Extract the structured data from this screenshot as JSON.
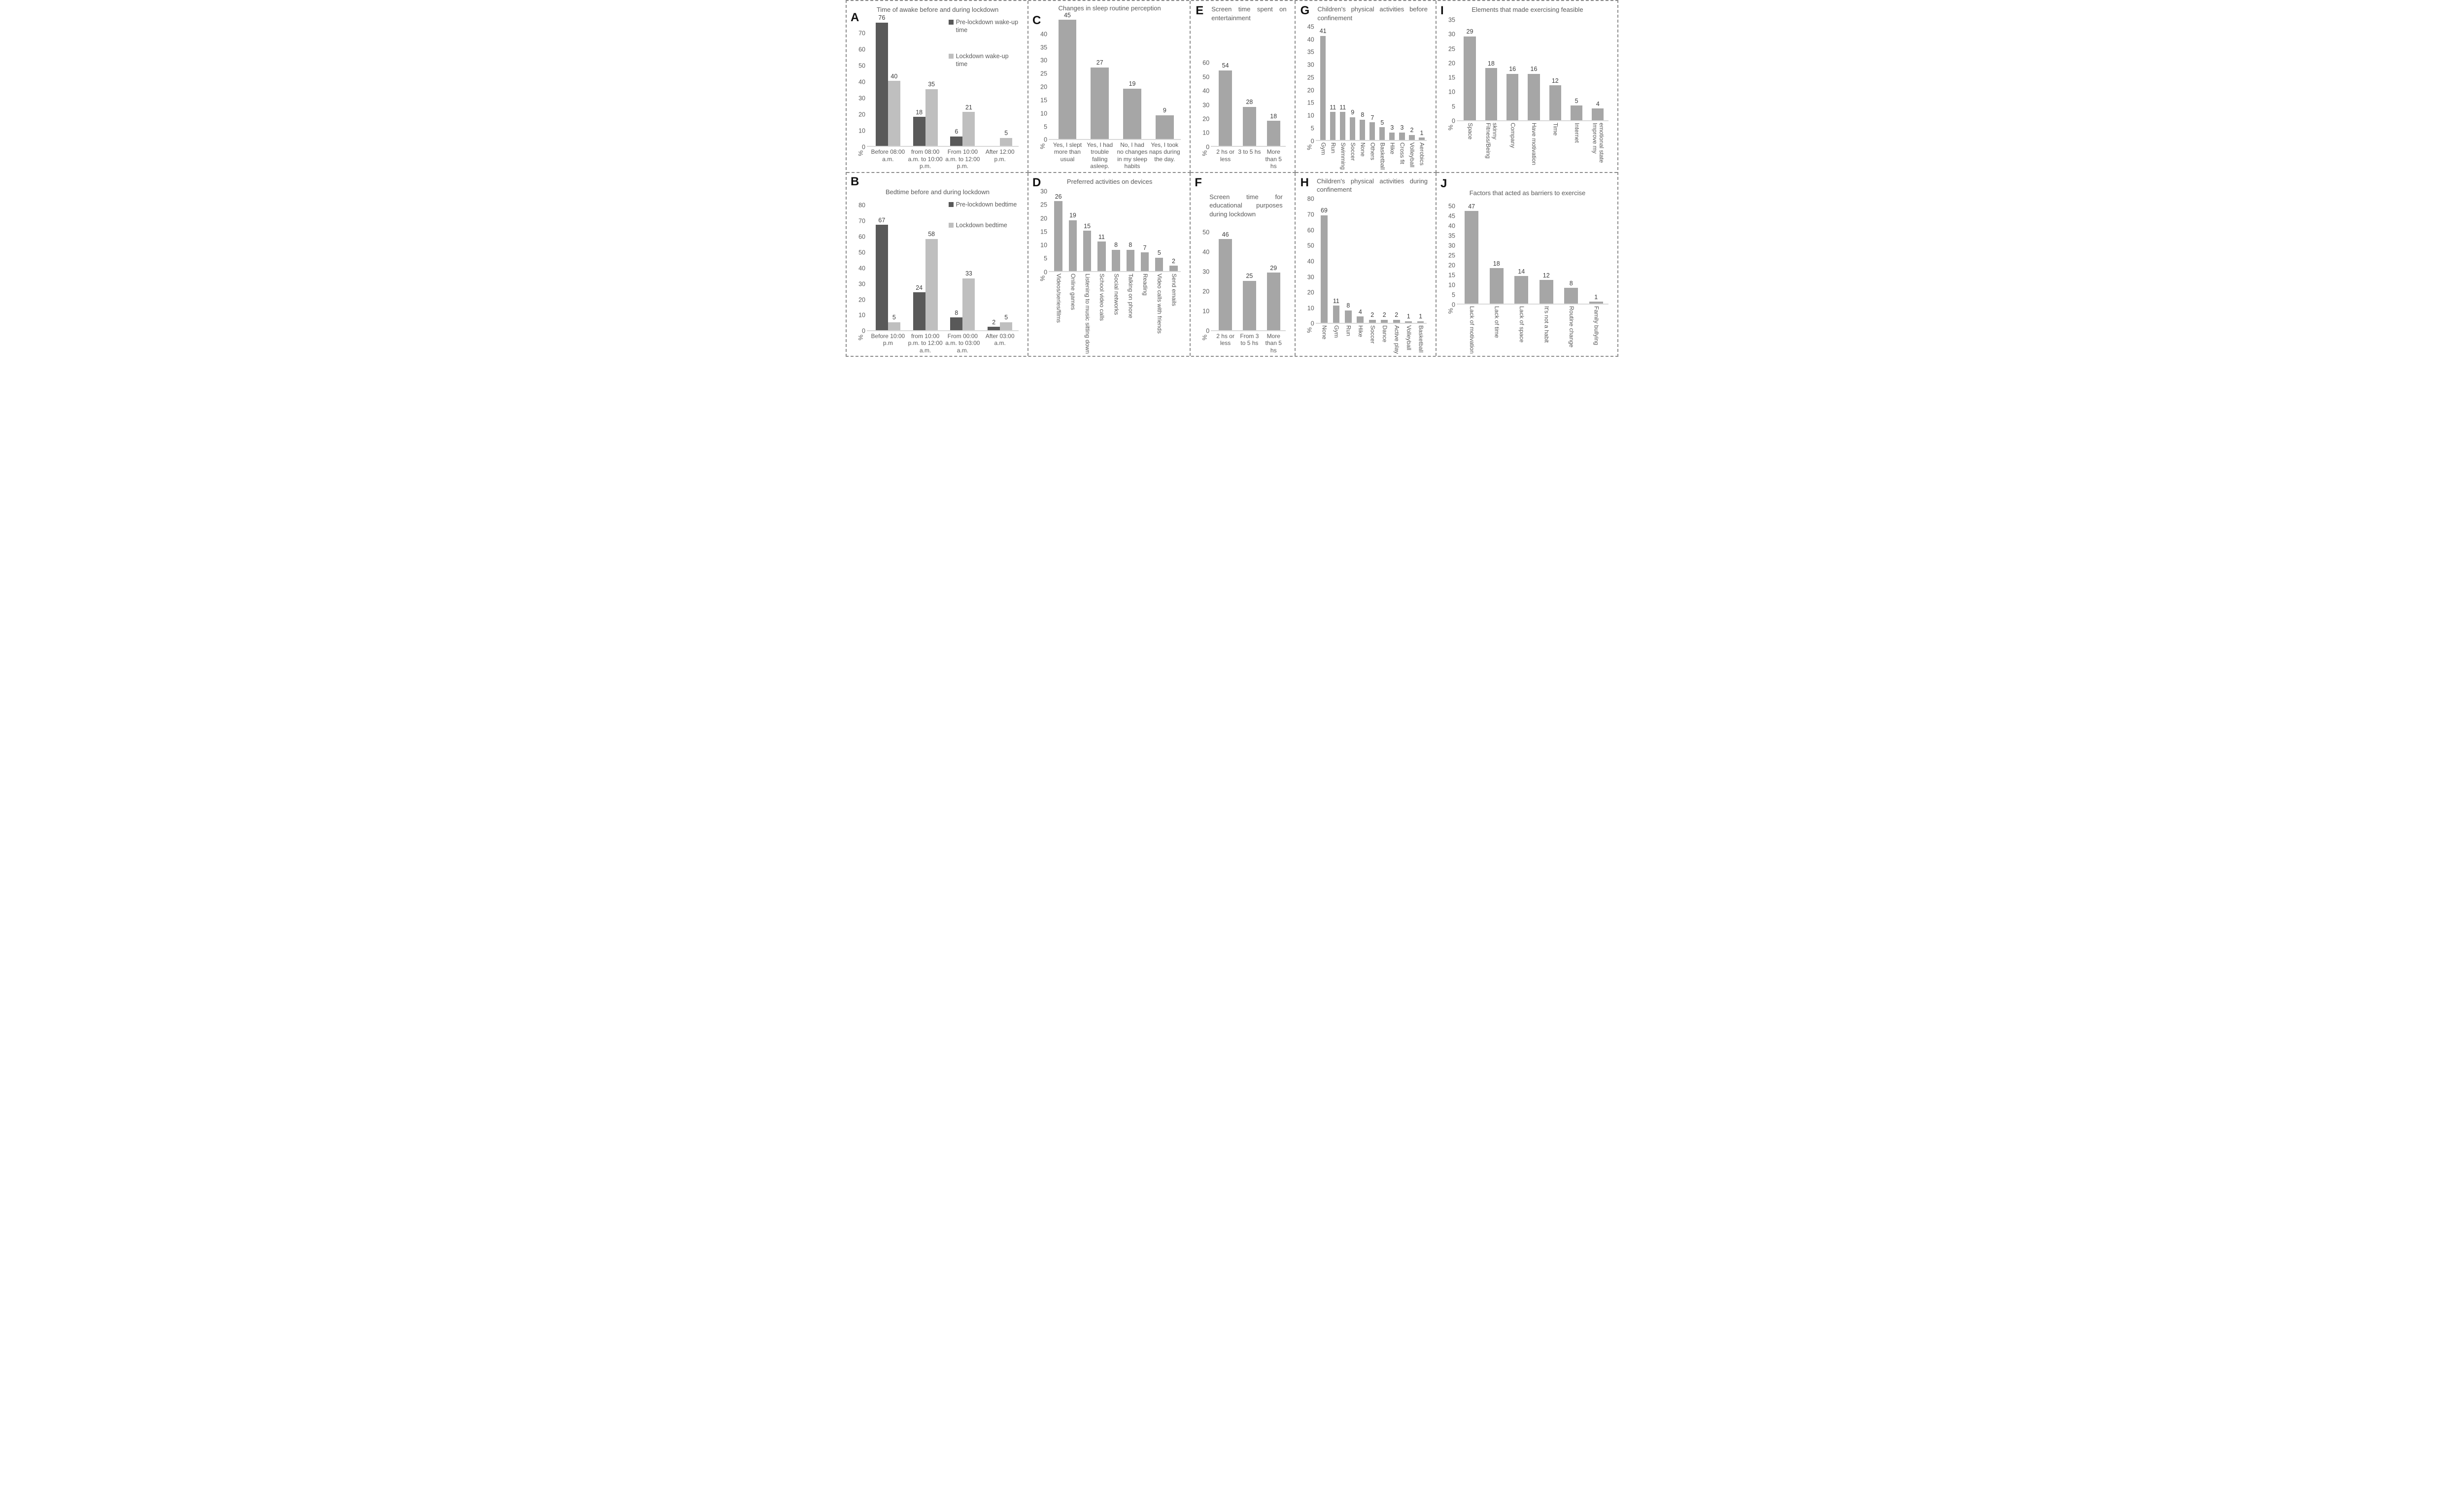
{
  "figure": {
    "background": "#ffffff",
    "panel_border_color": "#8c8c8c",
    "axis_line_color": "#d9d9d9",
    "text_color": "#595959",
    "bar_colors": {
      "dark": "#595959",
      "light": "#bfbfbf",
      "single": "#a6a6a6"
    }
  },
  "chart_data": [
    {
      "panel": "A",
      "type": "bar",
      "title": "Time of awake before and during lockdown",
      "ylabel": "%",
      "yticks": [
        0,
        10,
        20,
        30,
        40,
        50,
        60,
        70
      ],
      "ylim": [
        0,
        80
      ],
      "grid": false,
      "legend_position": "top-right",
      "rotated_xlabels": false,
      "categories": [
        "Before 08:00 a.m.",
        "from 08:00 a.m. to 10:00 p.m.",
        "From 10:00 a.m. to 12:00 p.m.",
        "After 12:00 p.m."
      ],
      "series": [
        {
          "name": "Pre-lockdown wake-up time",
          "color": "#595959",
          "values": [
            76,
            18,
            6,
            0
          ]
        },
        {
          "name": "Lockdown wake-up time",
          "color": "#bfbfbf",
          "values": [
            40,
            35,
            21,
            5
          ]
        }
      ]
    },
    {
      "panel": "C",
      "type": "bar",
      "title": "Changes in sleep routine perception",
      "ylabel": "%",
      "yticks": [
        0,
        5,
        10,
        15,
        20,
        25,
        30,
        35,
        40
      ],
      "ylim": [
        0,
        47
      ],
      "grid": false,
      "legend_position": "none",
      "rotated_xlabels": false,
      "categories": [
        "Yes, I slept more than usual",
        "Yes, I had trouble falling asleep.",
        "No, I had no changes in my sleep habits",
        "Yes, I took naps during the day."
      ],
      "series": [
        {
          "name": "Changes in sleep routine perception",
          "color": "#a6a6a6",
          "values": [
            45,
            27,
            19,
            9
          ]
        }
      ]
    },
    {
      "panel": "E",
      "type": "bar",
      "title": "Screen time spent on entertainment",
      "ylabel": "%",
      "yticks": [
        0,
        10,
        20,
        30,
        40,
        50,
        60
      ],
      "ylim": [
        0,
        63
      ],
      "grid": false,
      "legend_position": "none",
      "rotated_xlabels": false,
      "categories": [
        "2 hs or less",
        "3 to 5 hs",
        "More than 5 hs"
      ],
      "series": [
        {
          "name": "Screen time spent on entertainment",
          "color": "#a6a6a6",
          "values": [
            54,
            28,
            18
          ]
        }
      ]
    },
    {
      "panel": "G",
      "type": "bar",
      "title": "Children's physical activities before confinement",
      "ylabel": "%",
      "yticks": [
        0,
        5,
        10,
        15,
        20,
        25,
        30,
        35,
        40,
        45
      ],
      "ylim": [
        0,
        46
      ],
      "grid": false,
      "legend_position": "none",
      "rotated_xlabels": true,
      "categories": [
        "Gym",
        "Run",
        "Swimming",
        "Soccer",
        "None",
        "Others",
        "Basketball",
        "Hike",
        "Cross fit",
        "Volleyball",
        "Aerobics"
      ],
      "series": [
        {
          "name": "Children's physical activities before confinement",
          "color": "#a6a6a6",
          "values": [
            41,
            11,
            11,
            9,
            8,
            7,
            5,
            3,
            3,
            2,
            1
          ]
        }
      ]
    },
    {
      "panel": "I",
      "type": "bar",
      "title": "Elements that made exercising feasible",
      "ylabel": "%",
      "yticks": [
        0,
        5,
        10,
        15,
        20,
        25,
        30,
        35
      ],
      "ylim": [
        0,
        36
      ],
      "grid": false,
      "legend_position": "none",
      "rotated_xlabels": true,
      "categories": [
        "Space",
        "Fitness/Being skinny",
        "Company",
        "Have motivation",
        "Time",
        "Internet",
        "Improve my emotional state"
      ],
      "series": [
        {
          "name": "Elements that made exercising feasible",
          "color": "#a6a6a6",
          "values": [
            29,
            18,
            16,
            16,
            12,
            5,
            4
          ]
        }
      ]
    },
    {
      "panel": "B",
      "type": "bar",
      "title": "Bedtime before and during lockdown",
      "ylabel": "%",
      "yticks": [
        0,
        10,
        20,
        30,
        40,
        50,
        60,
        70,
        80
      ],
      "ylim": [
        0,
        84
      ],
      "grid": false,
      "legend_position": "top-right",
      "rotated_xlabels": false,
      "categories": [
        "Before 10:00 p.m",
        "from 10:00 p.m. to 12:00 a.m.",
        "From 00:00 a.m. to 03:00 a.m.",
        "After 03:00 a.m."
      ],
      "series": [
        {
          "name": "Pre-lockdown bedtime",
          "color": "#595959",
          "values": [
            67,
            24,
            8,
            2
          ]
        },
        {
          "name": "Lockdown bedtime",
          "color": "#bfbfbf",
          "values": [
            5,
            58,
            33,
            5
          ]
        }
      ]
    },
    {
      "panel": "D",
      "type": "bar",
      "title": "Preferred activities on devices",
      "ylabel": "%",
      "yticks": [
        0,
        5,
        10,
        15,
        20,
        25,
        30
      ],
      "ylim": [
        0,
        31
      ],
      "grid": false,
      "legend_position": "none",
      "rotated_xlabels": true,
      "categories": [
        "Videos/series/films",
        "Online games",
        "Listening to music sitting down",
        "School video calls",
        "Social networks",
        "Talking on phone",
        "Reading",
        "Video calls with friends",
        "Send emails"
      ],
      "series": [
        {
          "name": "Preferred activities on devices",
          "color": "#a6a6a6",
          "values": [
            26,
            19,
            15,
            11,
            8,
            8,
            7,
            5,
            2
          ]
        }
      ]
    },
    {
      "panel": "F",
      "type": "bar",
      "title": "Screen time for educational purposes during lockdown",
      "ylabel": "%",
      "yticks": [
        0,
        10,
        20,
        30,
        40,
        50
      ],
      "ylim": [
        0,
        53
      ],
      "grid": false,
      "legend_position": "none",
      "rotated_xlabels": false,
      "categories": [
        "2 hs or less",
        "From 3 to 5 hs",
        "More than 5 hs"
      ],
      "series": [
        {
          "name": "Screen time for educational purposes during lockdown",
          "color": "#a6a6a6",
          "values": [
            46,
            25,
            29
          ]
        }
      ]
    },
    {
      "panel": "H",
      "type": "bar",
      "title": "Children's physical activities during confinement",
      "ylabel": "%",
      "yticks": [
        0,
        10,
        20,
        30,
        40,
        50,
        60,
        70,
        80
      ],
      "ylim": [
        0,
        82
      ],
      "grid": false,
      "legend_position": "none",
      "rotated_xlabels": true,
      "categories": [
        "None",
        "Gym",
        "Run",
        "Hike",
        "Soccer",
        "Dance",
        "Active play",
        "Volleyball",
        "Basketball"
      ],
      "series": [
        {
          "name": "Children's physical activities during confinement",
          "color": "#a6a6a6",
          "values": [
            69,
            11,
            8,
            4,
            2,
            2,
            2,
            1,
            1
          ]
        }
      ]
    },
    {
      "panel": "J",
      "type": "bar",
      "title": "Factors that acted as barriers to exercise",
      "ylabel": "%",
      "yticks": [
        0,
        5,
        10,
        15,
        20,
        25,
        30,
        35,
        40,
        45,
        50
      ],
      "ylim": [
        0,
        53
      ],
      "grid": false,
      "legend_position": "none",
      "rotated_xlabels": true,
      "categories": [
        "Lack of motivation",
        "Lack of time",
        "Lack of space",
        "It's not a habit",
        "Routine change",
        "Family bullying"
      ],
      "series": [
        {
          "name": "Factors that acted as barriers to exercise",
          "color": "#a6a6a6",
          "values": [
            47,
            18,
            14,
            12,
            8,
            1
          ]
        }
      ]
    }
  ]
}
